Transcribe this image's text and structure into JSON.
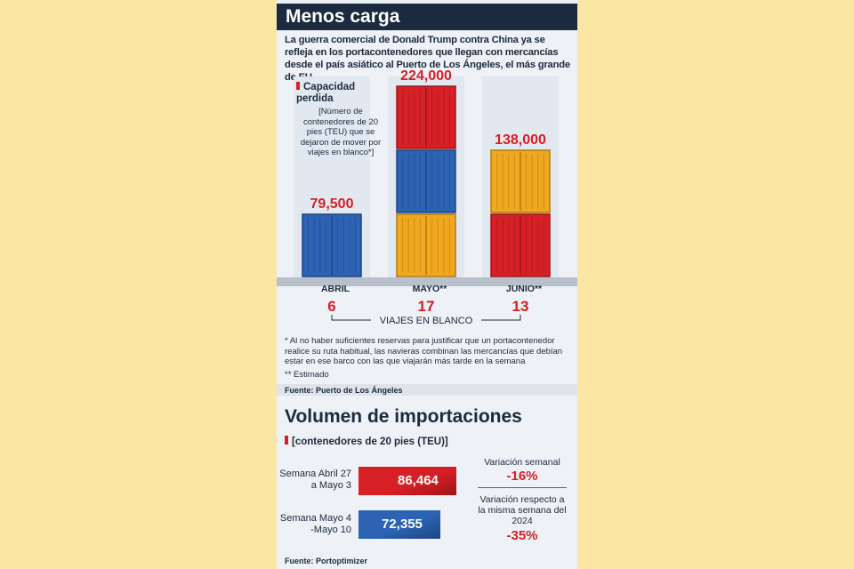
{
  "title": "Menos carga",
  "intro": "La guerra comercial de Donald Trump contra China ya se refleja en los portacontenedores que llegan con mercancías desde el país asiático al Puerto de Los Ángeles, el más grande de EU.",
  "capacity_title": "Capacidad perdida",
  "capacity_note": "[Número de contenedores de 20 pies (TEU) que se dejaron de mover por viajes en blanco*]",
  "blank_voyages_label": "VIAJES EN BLANCO",
  "footnote": "* Al no haber suficientes reservas para justificar que un portacontenedor realice su ruta habitual, las navieras combinan las mercancías que debían estar en ese barco con las que viajarán más tarde en la semana",
  "estimado": "** Estimado",
  "source1": "Fuente: Puerto de Los Ángeles",
  "volume_title": "Volumen de importaciones",
  "volume_subtitle": "[contenedores de 20 pies (TEU)]",
  "weekly_variation_label": "Variación semanal",
  "weekly_variation_value": "-16%",
  "yoy_variation_label": "Variación respecto a la misma semana del 2024",
  "yoy_variation_value": "-35%",
  "source2": "Fuente: Portoptimizer",
  "colors": {
    "red": "#d72026",
    "blue": "#2c63b3",
    "yellow": "#efa81f",
    "navy": "#1b2a3f"
  },
  "chart_data": [
    {
      "type": "bar",
      "title": "Capacidad perdida",
      "categories": [
        "ABRIL",
        "MAYO**",
        "JUNIO**"
      ],
      "values": [
        79500,
        224000,
        138000
      ],
      "value_labels": [
        "79,500",
        "224,000",
        "138,000"
      ],
      "blank_voyages": [
        6,
        17,
        13
      ],
      "container_colors": [
        [
          "blue"
        ],
        [
          "yellow",
          "blue",
          "red"
        ],
        [
          "red",
          "yellow"
        ]
      ]
    },
    {
      "type": "bar",
      "title": "Volumen de importaciones",
      "categories": [
        "Semana Abril 27 a Mayo 3",
        "Semana Mayo 4 -Mayo 10"
      ],
      "values": [
        86464,
        72355
      ],
      "value_labels": [
        "86,464",
        "72,355"
      ],
      "bar_colors": [
        "red",
        "blue"
      ]
    }
  ]
}
